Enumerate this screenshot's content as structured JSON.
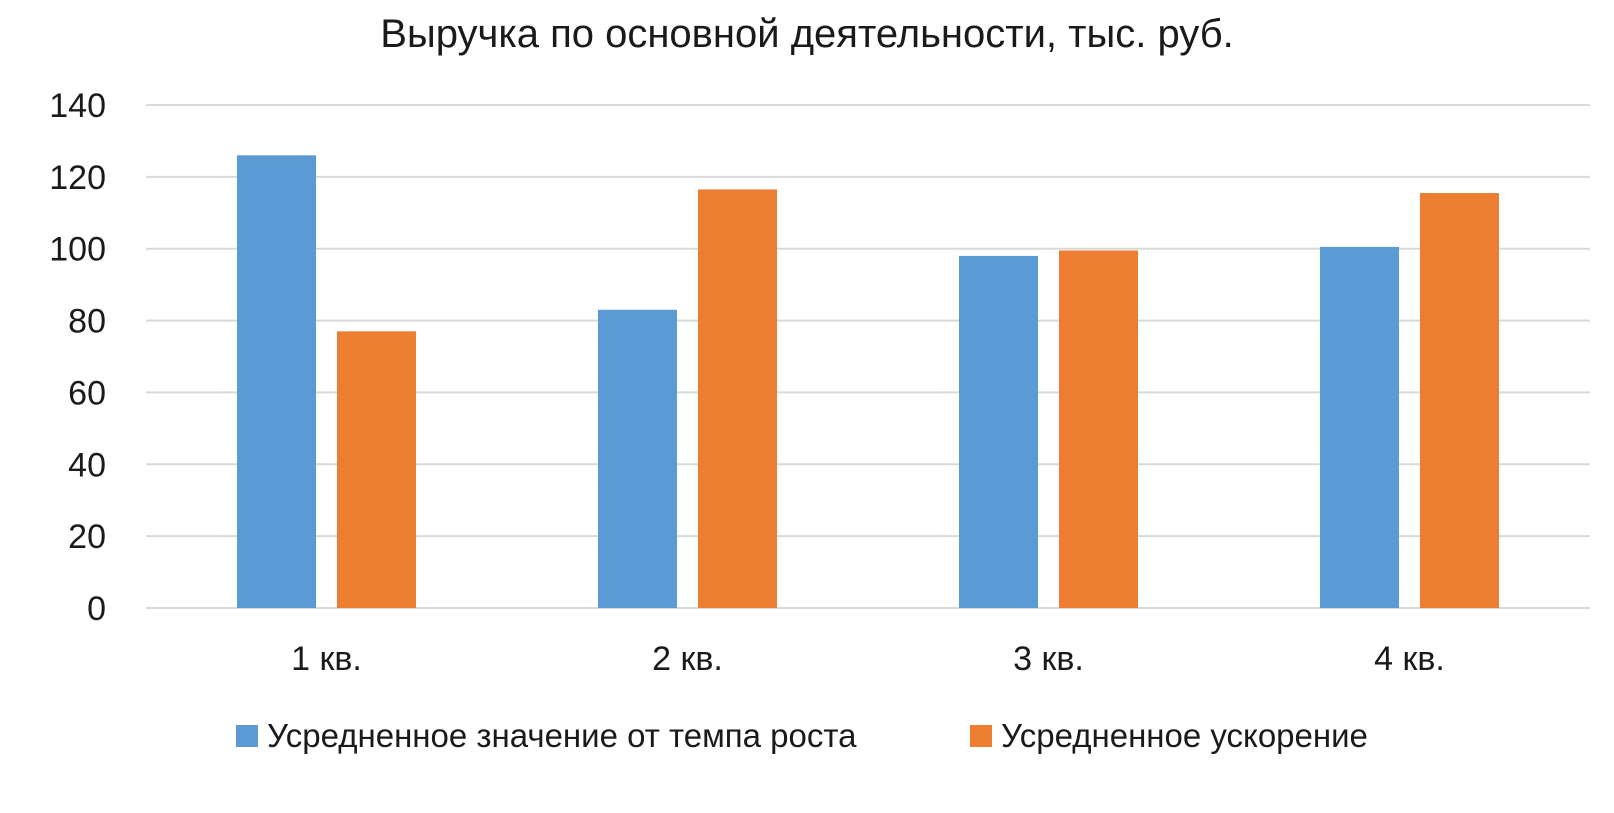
{
  "chart_data": {
    "type": "bar",
    "title": "Выручка по основной деятельности, тыс. руб.",
    "xlabel": "",
    "ylabel": "",
    "categories": [
      "1 кв.",
      "2 кв.",
      "3 кв.",
      "4 кв."
    ],
    "series": [
      {
        "name": "Усредненное значение от темпа роста",
        "color": "#5b9bd5",
        "values": [
          126,
          83,
          98,
          100.5
        ]
      },
      {
        "name": "Усредненное ускорение",
        "color": "#ed7d31",
        "values": [
          77,
          116.5,
          99.5,
          115.5
        ]
      }
    ],
    "ylim": [
      0,
      140
    ],
    "yticks": [
      "0",
      "20",
      "40",
      "60",
      "80",
      "100",
      "120",
      "140"
    ],
    "grid": true,
    "legend_position": "bottom"
  }
}
